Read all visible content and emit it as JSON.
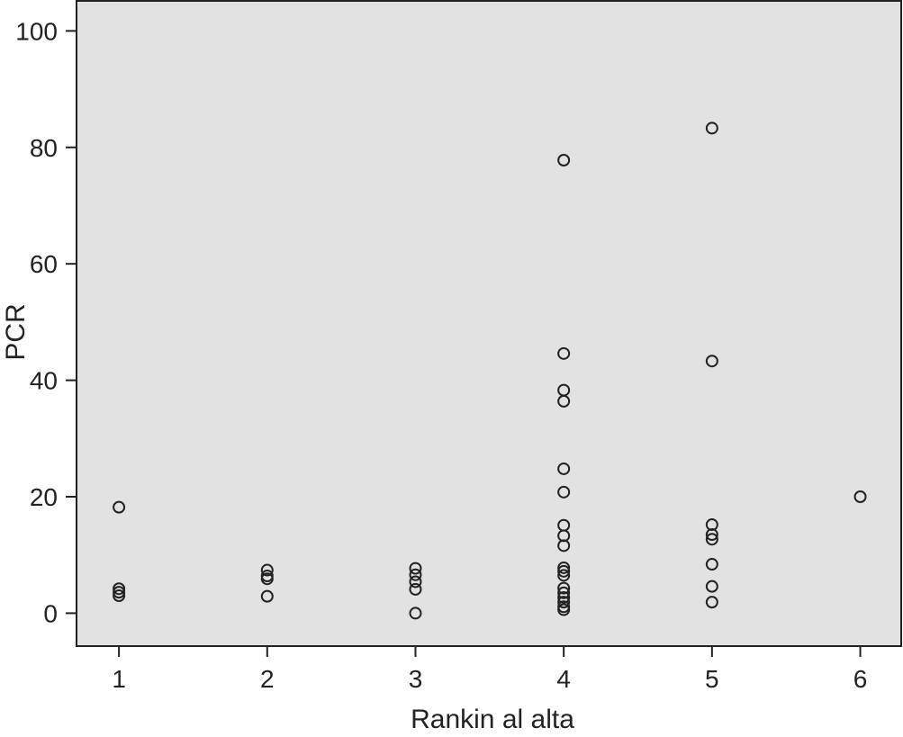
{
  "chart_data": {
    "type": "scatter",
    "title": "",
    "xlabel": "Rankin al alta",
    "ylabel": "PCR",
    "xlim": [
      0.72,
      6.27
    ],
    "ylim": [
      -5.5,
      105
    ],
    "xticks": [
      "1",
      "2",
      "3",
      "4",
      "5",
      "6"
    ],
    "yticks": [
      "0",
      "20",
      "40",
      "60",
      "80",
      "100"
    ],
    "grid": false,
    "background_color": "#e2e2e2",
    "marker": "open-circle",
    "points": [
      {
        "x": 1,
        "y": 18.2
      },
      {
        "x": 1,
        "y": 4.2
      },
      {
        "x": 1,
        "y": 3.6
      },
      {
        "x": 1,
        "y": 3.0
      },
      {
        "x": 2,
        "y": 7.4
      },
      {
        "x": 2,
        "y": 6.4
      },
      {
        "x": 2,
        "y": 5.9
      },
      {
        "x": 2,
        "y": 2.9
      },
      {
        "x": 3,
        "y": 7.7
      },
      {
        "x": 3,
        "y": 6.6
      },
      {
        "x": 3,
        "y": 5.4
      },
      {
        "x": 3,
        "y": 4.1
      },
      {
        "x": 3,
        "y": 0.0
      },
      {
        "x": 4,
        "y": 77.8
      },
      {
        "x": 4,
        "y": 44.6
      },
      {
        "x": 4,
        "y": 38.3
      },
      {
        "x": 4,
        "y": 36.4
      },
      {
        "x": 4,
        "y": 24.8
      },
      {
        "x": 4,
        "y": 20.8
      },
      {
        "x": 4,
        "y": 15.1
      },
      {
        "x": 4,
        "y": 13.3
      },
      {
        "x": 4,
        "y": 11.6
      },
      {
        "x": 4,
        "y": 7.8
      },
      {
        "x": 4,
        "y": 7.2
      },
      {
        "x": 4,
        "y": 6.5
      },
      {
        "x": 4,
        "y": 4.3
      },
      {
        "x": 4,
        "y": 3.5
      },
      {
        "x": 4,
        "y": 2.7
      },
      {
        "x": 4,
        "y": 1.9
      },
      {
        "x": 4,
        "y": 1.1
      },
      {
        "x": 4,
        "y": 0.6
      },
      {
        "x": 5,
        "y": 83.3
      },
      {
        "x": 5,
        "y": 43.3
      },
      {
        "x": 5,
        "y": 15.2
      },
      {
        "x": 5,
        "y": 13.5
      },
      {
        "x": 5,
        "y": 12.7
      },
      {
        "x": 5,
        "y": 8.4
      },
      {
        "x": 5,
        "y": 4.6
      },
      {
        "x": 5,
        "y": 1.9
      },
      {
        "x": 6,
        "y": 20.0
      }
    ]
  }
}
